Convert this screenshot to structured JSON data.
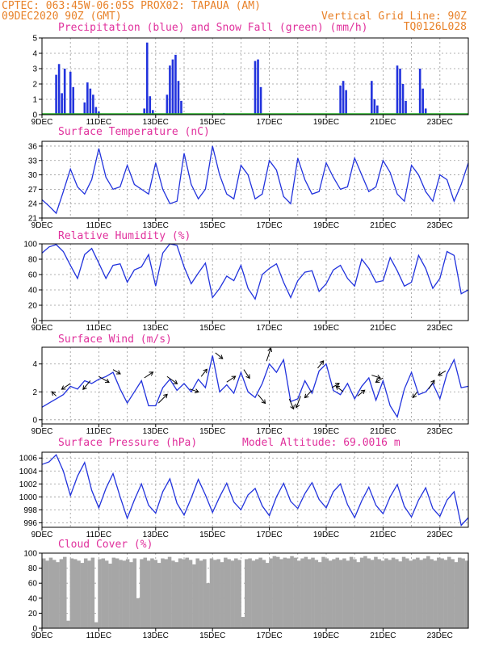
{
  "header": {
    "line1": "CPTEC:   063:45W-06:05S   PROX02: TAPAUA (AM)",
    "date": "09DEC2020 90Z (GMT)",
    "grid_line": "Vertical Grid Line: 90Z",
    "code": "TQ0126L028"
  },
  "x_ticks": [
    "9DEC",
    "11DEC",
    "13DEC",
    "15DEC",
    "17DEC",
    "19DEC",
    "21DEC",
    "23DEC"
  ],
  "colors": {
    "line": "#2233dd",
    "precip": "#2233dd",
    "snow": "#22aa22",
    "cloud": "#a6a6a6",
    "title": "#e0309c",
    "header": "#e8822a"
  },
  "chart_data": [
    {
      "type": "bar",
      "title": "Precipitation (blue) and Snow Fall (green) (mm/h)",
      "ylim": [
        0,
        5
      ],
      "yticks": [
        0,
        1,
        2,
        3,
        4,
        5
      ],
      "series": [
        {
          "name": "Precipitation",
          "values": [
            [
              0.5,
              2.6
            ],
            [
              0.6,
              3.3
            ],
            [
              0.7,
              1.4
            ],
            [
              0.8,
              3.0
            ],
            [
              1.0,
              2.8
            ],
            [
              1.1,
              1.8
            ],
            [
              1.5,
              0.8
            ],
            [
              1.6,
              2.1
            ],
            [
              1.7,
              1.7
            ],
            [
              1.8,
              1.3
            ],
            [
              1.9,
              0.5
            ],
            [
              2.0,
              0.2
            ],
            [
              3.6,
              0.4
            ],
            [
              3.7,
              4.7
            ],
            [
              3.8,
              1.2
            ],
            [
              3.9,
              0.3
            ],
            [
              4.4,
              1.3
            ],
            [
              4.5,
              3.2
            ],
            [
              4.6,
              3.6
            ],
            [
              4.7,
              3.9
            ],
            [
              4.8,
              2.2
            ],
            [
              4.9,
              0.9
            ],
            [
              6.4,
              0.1
            ],
            [
              7.5,
              3.5
            ],
            [
              7.6,
              3.6
            ],
            [
              7.7,
              1.8
            ],
            [
              10.5,
              1.9
            ],
            [
              10.6,
              2.2
            ],
            [
              10.7,
              1.6
            ],
            [
              11.6,
              2.2
            ],
            [
              11.7,
              1.0
            ],
            [
              11.8,
              0.6
            ],
            [
              12.5,
              3.2
            ],
            [
              12.6,
              3.0
            ],
            [
              12.7,
              2.0
            ],
            [
              12.8,
              0.9
            ],
            [
              13.3,
              3.0
            ],
            [
              13.4,
              1.7
            ],
            [
              13.5,
              0.4
            ]
          ]
        }
      ],
      "snow": [
        0.0
      ]
    },
    {
      "type": "line",
      "title": "Surface Temperature (nC)",
      "ylim": [
        21,
        37
      ],
      "yticks": [
        21,
        24,
        27,
        30,
        33,
        36
      ],
      "x": [
        0,
        0.25,
        0.5,
        0.75,
        1,
        1.25,
        1.5,
        1.75,
        2,
        2.25,
        2.5,
        2.75,
        3,
        3.25,
        3.5,
        3.75,
        4,
        4.25,
        4.5,
        4.75,
        5,
        5.25,
        5.5,
        5.75,
        6,
        6.25,
        6.5,
        6.75,
        7,
        7.25,
        7.5,
        7.75,
        8,
        8.25,
        8.5,
        8.75,
        9,
        9.25,
        9.5,
        9.75,
        10,
        10.25,
        10.5,
        10.75,
        11,
        11.25,
        11.5,
        11.75,
        12,
        12.25,
        12.5,
        12.75,
        13,
        13.25,
        13.5,
        13.75,
        14,
        14.25,
        14.5,
        14.75,
        15
      ],
      "values": [
        24.8,
        23.5,
        22.0,
        26.5,
        31.2,
        27.5,
        26.0,
        29.0,
        35.5,
        29.5,
        27.0,
        27.5,
        32.0,
        28.0,
        27.0,
        26.0,
        32.5,
        27.0,
        24.0,
        24.5,
        34.5,
        28.0,
        25.0,
        27.0,
        36.0,
        30.0,
        26.0,
        25.0,
        32.0,
        30.0,
        25.0,
        26.0,
        33.0,
        31.0,
        25.5,
        24.0,
        33.5,
        29.0,
        26.0,
        26.5,
        32.5,
        29.5,
        27.0,
        27.5,
        33.5,
        30.0,
        26.5,
        27.5,
        33.0,
        30.5,
        26.0,
        24.5,
        32.0,
        30.0,
        26.5,
        24.5,
        30.0,
        29.0,
        24.5,
        28.0,
        32.5
      ]
    },
    {
      "type": "line",
      "title": "Relative Humidity (%)",
      "ylim": [
        0,
        100
      ],
      "yticks": [
        0,
        20,
        40,
        60,
        80,
        100
      ],
      "x": [
        0,
        0.25,
        0.5,
        0.75,
        1,
        1.25,
        1.5,
        1.75,
        2,
        2.25,
        2.5,
        2.75,
        3,
        3.25,
        3.5,
        3.75,
        4,
        4.25,
        4.5,
        4.75,
        5,
        5.25,
        5.5,
        5.75,
        6,
        6.25,
        6.5,
        6.75,
        7,
        7.25,
        7.5,
        7.75,
        8,
        8.25,
        8.5,
        8.75,
        9,
        9.25,
        9.5,
        9.75,
        10,
        10.25,
        10.5,
        10.75,
        11,
        11.25,
        11.5,
        11.75,
        12,
        12.25,
        12.5,
        12.75,
        13,
        13.25,
        13.5,
        13.75,
        14,
        14.25,
        14.5,
        14.75,
        15
      ],
      "values": [
        88,
        96,
        99,
        90,
        72,
        55,
        86,
        94,
        75,
        55,
        72,
        74,
        50,
        66,
        70,
        86,
        45,
        88,
        100,
        98,
        70,
        48,
        62,
        75,
        30,
        42,
        58,
        52,
        72,
        42,
        28,
        60,
        68,
        74,
        50,
        30,
        52,
        63,
        65,
        38,
        48,
        66,
        72,
        55,
        45,
        80,
        68,
        50,
        52,
        82,
        65,
        45,
        50,
        85,
        68,
        42,
        55,
        90,
        85,
        35,
        40
      ]
    },
    {
      "type": "line",
      "title": "Surface Wind (m/s)",
      "ylim": [
        -0.3,
        5.2
      ],
      "yticks": [
        0,
        2,
        4
      ],
      "x": [
        0,
        0.25,
        0.5,
        0.75,
        1,
        1.25,
        1.5,
        1.75,
        2,
        2.25,
        2.5,
        2.75,
        3,
        3.25,
        3.5,
        3.75,
        4,
        4.25,
        4.5,
        4.75,
        5,
        5.25,
        5.5,
        5.75,
        6,
        6.25,
        6.5,
        6.75,
        7,
        7.25,
        7.5,
        7.75,
        8,
        8.25,
        8.5,
        8.75,
        9,
        9.25,
        9.5,
        9.75,
        10,
        10.25,
        10.5,
        10.75,
        11,
        11.25,
        11.5,
        11.75,
        12,
        12.25,
        12.5,
        12.75,
        13,
        13.25,
        13.5,
        13.75,
        14,
        14.25,
        14.5,
        14.75,
        15
      ],
      "values": [
        0.9,
        1.2,
        1.5,
        1.8,
        2.4,
        2.2,
        2.8,
        2.6,
        2.9,
        3.1,
        3.4,
        2.2,
        1.2,
        2.0,
        2.8,
        1.0,
        1.0,
        2.3,
        2.9,
        2.1,
        2.6,
        2.0,
        2.9,
        2.3,
        4.6,
        2.0,
        2.5,
        1.9,
        3.4,
        2.0,
        1.6,
        2.6,
        4.0,
        3.4,
        4.3,
        1.3,
        1.5,
        2.8,
        1.9,
        3.5,
        4.0,
        2.1,
        1.8,
        2.6,
        1.5,
        2.4,
        3.0,
        1.4,
        2.8,
        1.0,
        0.2,
        2.2,
        3.4,
        1.8,
        2.0,
        2.6,
        1.5,
        3.3,
        4.3,
        2.3,
        2.4
      ],
      "arrows": [
        [
          0.5,
          -0.3,
          0.3
        ],
        [
          1.0,
          -0.6,
          -0.4
        ],
        [
          1.7,
          -0.5,
          -0.6
        ],
        [
          2.0,
          0.7,
          -0.4
        ],
        [
          2.5,
          0.5,
          -0.3
        ],
        [
          3.6,
          0.6,
          0.4
        ],
        [
          4.1,
          0.6,
          0.6
        ],
        [
          4.4,
          0.7,
          -0.5
        ],
        [
          5.2,
          0.6,
          -0.2
        ],
        [
          5.6,
          0.4,
          0.5
        ],
        [
          6.1,
          0.5,
          -0.4
        ],
        [
          6.5,
          0.6,
          0.4
        ],
        [
          7.1,
          0.4,
          -0.6
        ],
        [
          7.6,
          0.5,
          -0.6
        ],
        [
          7.9,
          0.3,
          0.9
        ],
        [
          8.7,
          0.3,
          -0.7
        ],
        [
          9.1,
          -0.3,
          -0.8
        ],
        [
          9.5,
          -0.5,
          -0.5
        ],
        [
          9.7,
          0.4,
          0.5
        ],
        [
          10.2,
          0.5,
          0.3
        ],
        [
          10.6,
          -0.5,
          0.4
        ],
        [
          11.1,
          0.5,
          0.4
        ],
        [
          11.6,
          0.6,
          -0.2
        ],
        [
          12.0,
          -0.5,
          -0.3
        ],
        [
          13.2,
          -0.3,
          -0.4
        ],
        [
          13.6,
          0.4,
          0.6
        ],
        [
          14.2,
          -0.5,
          -0.3
        ]
      ]
    },
    {
      "type": "line",
      "title": "Surface Pressure (hPa)",
      "subtitle": "Model Altitude: 69.0016 m",
      "ylim": [
        995.3,
        1006.9
      ],
      "yticks": [
        996,
        998,
        1000,
        1002,
        1004,
        1006
      ],
      "x": [
        0,
        0.25,
        0.5,
        0.75,
        1,
        1.25,
        1.5,
        1.75,
        2,
        2.25,
        2.5,
        2.75,
        3,
        3.25,
        3.5,
        3.75,
        4,
        4.25,
        4.5,
        4.75,
        5,
        5.25,
        5.5,
        5.75,
        6,
        6.25,
        6.5,
        6.75,
        7,
        7.25,
        7.5,
        7.75,
        8,
        8.25,
        8.5,
        8.75,
        9,
        9.25,
        9.5,
        9.75,
        10,
        10.25,
        10.5,
        10.75,
        11,
        11.25,
        11.5,
        11.75,
        12,
        12.25,
        12.5,
        12.75,
        13,
        13.25,
        13.5,
        13.75,
        14,
        14.25,
        14.5,
        14.75,
        15
      ],
      "values": [
        1005.0,
        1005.4,
        1006.5,
        1004.0,
        1000.2,
        1003.2,
        1005.3,
        1001.0,
        998.3,
        1001.3,
        1003.6,
        1000.0,
        996.7,
        999.5,
        1002.0,
        998.7,
        997.5,
        1000.8,
        1002.8,
        999.0,
        997.2,
        999.8,
        1002.7,
        1000.3,
        997.6,
        1000.0,
        1002.1,
        999.2,
        998.0,
        1000.3,
        1001.3,
        998.6,
        997.1,
        1000.0,
        1002.1,
        999.3,
        998.2,
        1000.5,
        1002.2,
        999.6,
        998.3,
        1000.8,
        1002.0,
        998.8,
        996.8,
        999.4,
        1001.5,
        998.7,
        997.4,
        1000.0,
        1001.9,
        998.5,
        996.9,
        999.5,
        1001.4,
        998.2,
        997.0,
        999.5,
        1000.8,
        995.6,
        996.8
      ]
    },
    {
      "type": "bar",
      "title": "Cloud Cover (%)",
      "ylim": [
        0,
        100
      ],
      "yticks": [
        0,
        20,
        40,
        60,
        80,
        100
      ],
      "x_step": 0.125,
      "values": [
        93,
        90,
        94,
        91,
        88,
        92,
        95,
        10,
        93,
        92,
        90,
        87,
        93,
        90,
        94,
        8,
        92,
        93,
        90,
        86,
        94,
        93,
        91,
        90,
        92,
        88,
        93,
        40,
        92,
        94,
        90,
        93,
        91,
        87,
        93,
        92,
        95,
        90,
        88,
        93,
        92,
        94,
        91,
        85,
        93,
        90,
        92,
        60,
        93,
        91,
        92,
        88,
        94,
        92,
        90,
        93,
        91,
        15,
        92,
        93,
        90,
        92,
        94,
        91,
        87,
        93,
        96,
        95,
        92,
        94,
        93,
        96,
        94,
        90,
        93,
        95,
        92,
        94,
        91,
        88,
        95,
        93,
        90,
        92,
        94,
        91,
        93,
        90,
        95,
        92,
        88,
        94,
        96,
        93,
        91,
        95,
        92,
        90,
        93,
        91,
        94,
        92,
        89,
        95,
        93,
        90,
        92,
        94,
        91,
        93,
        96,
        92,
        90,
        94,
        93,
        91,
        95,
        92,
        88,
        94,
        93,
        90
      ]
    }
  ]
}
